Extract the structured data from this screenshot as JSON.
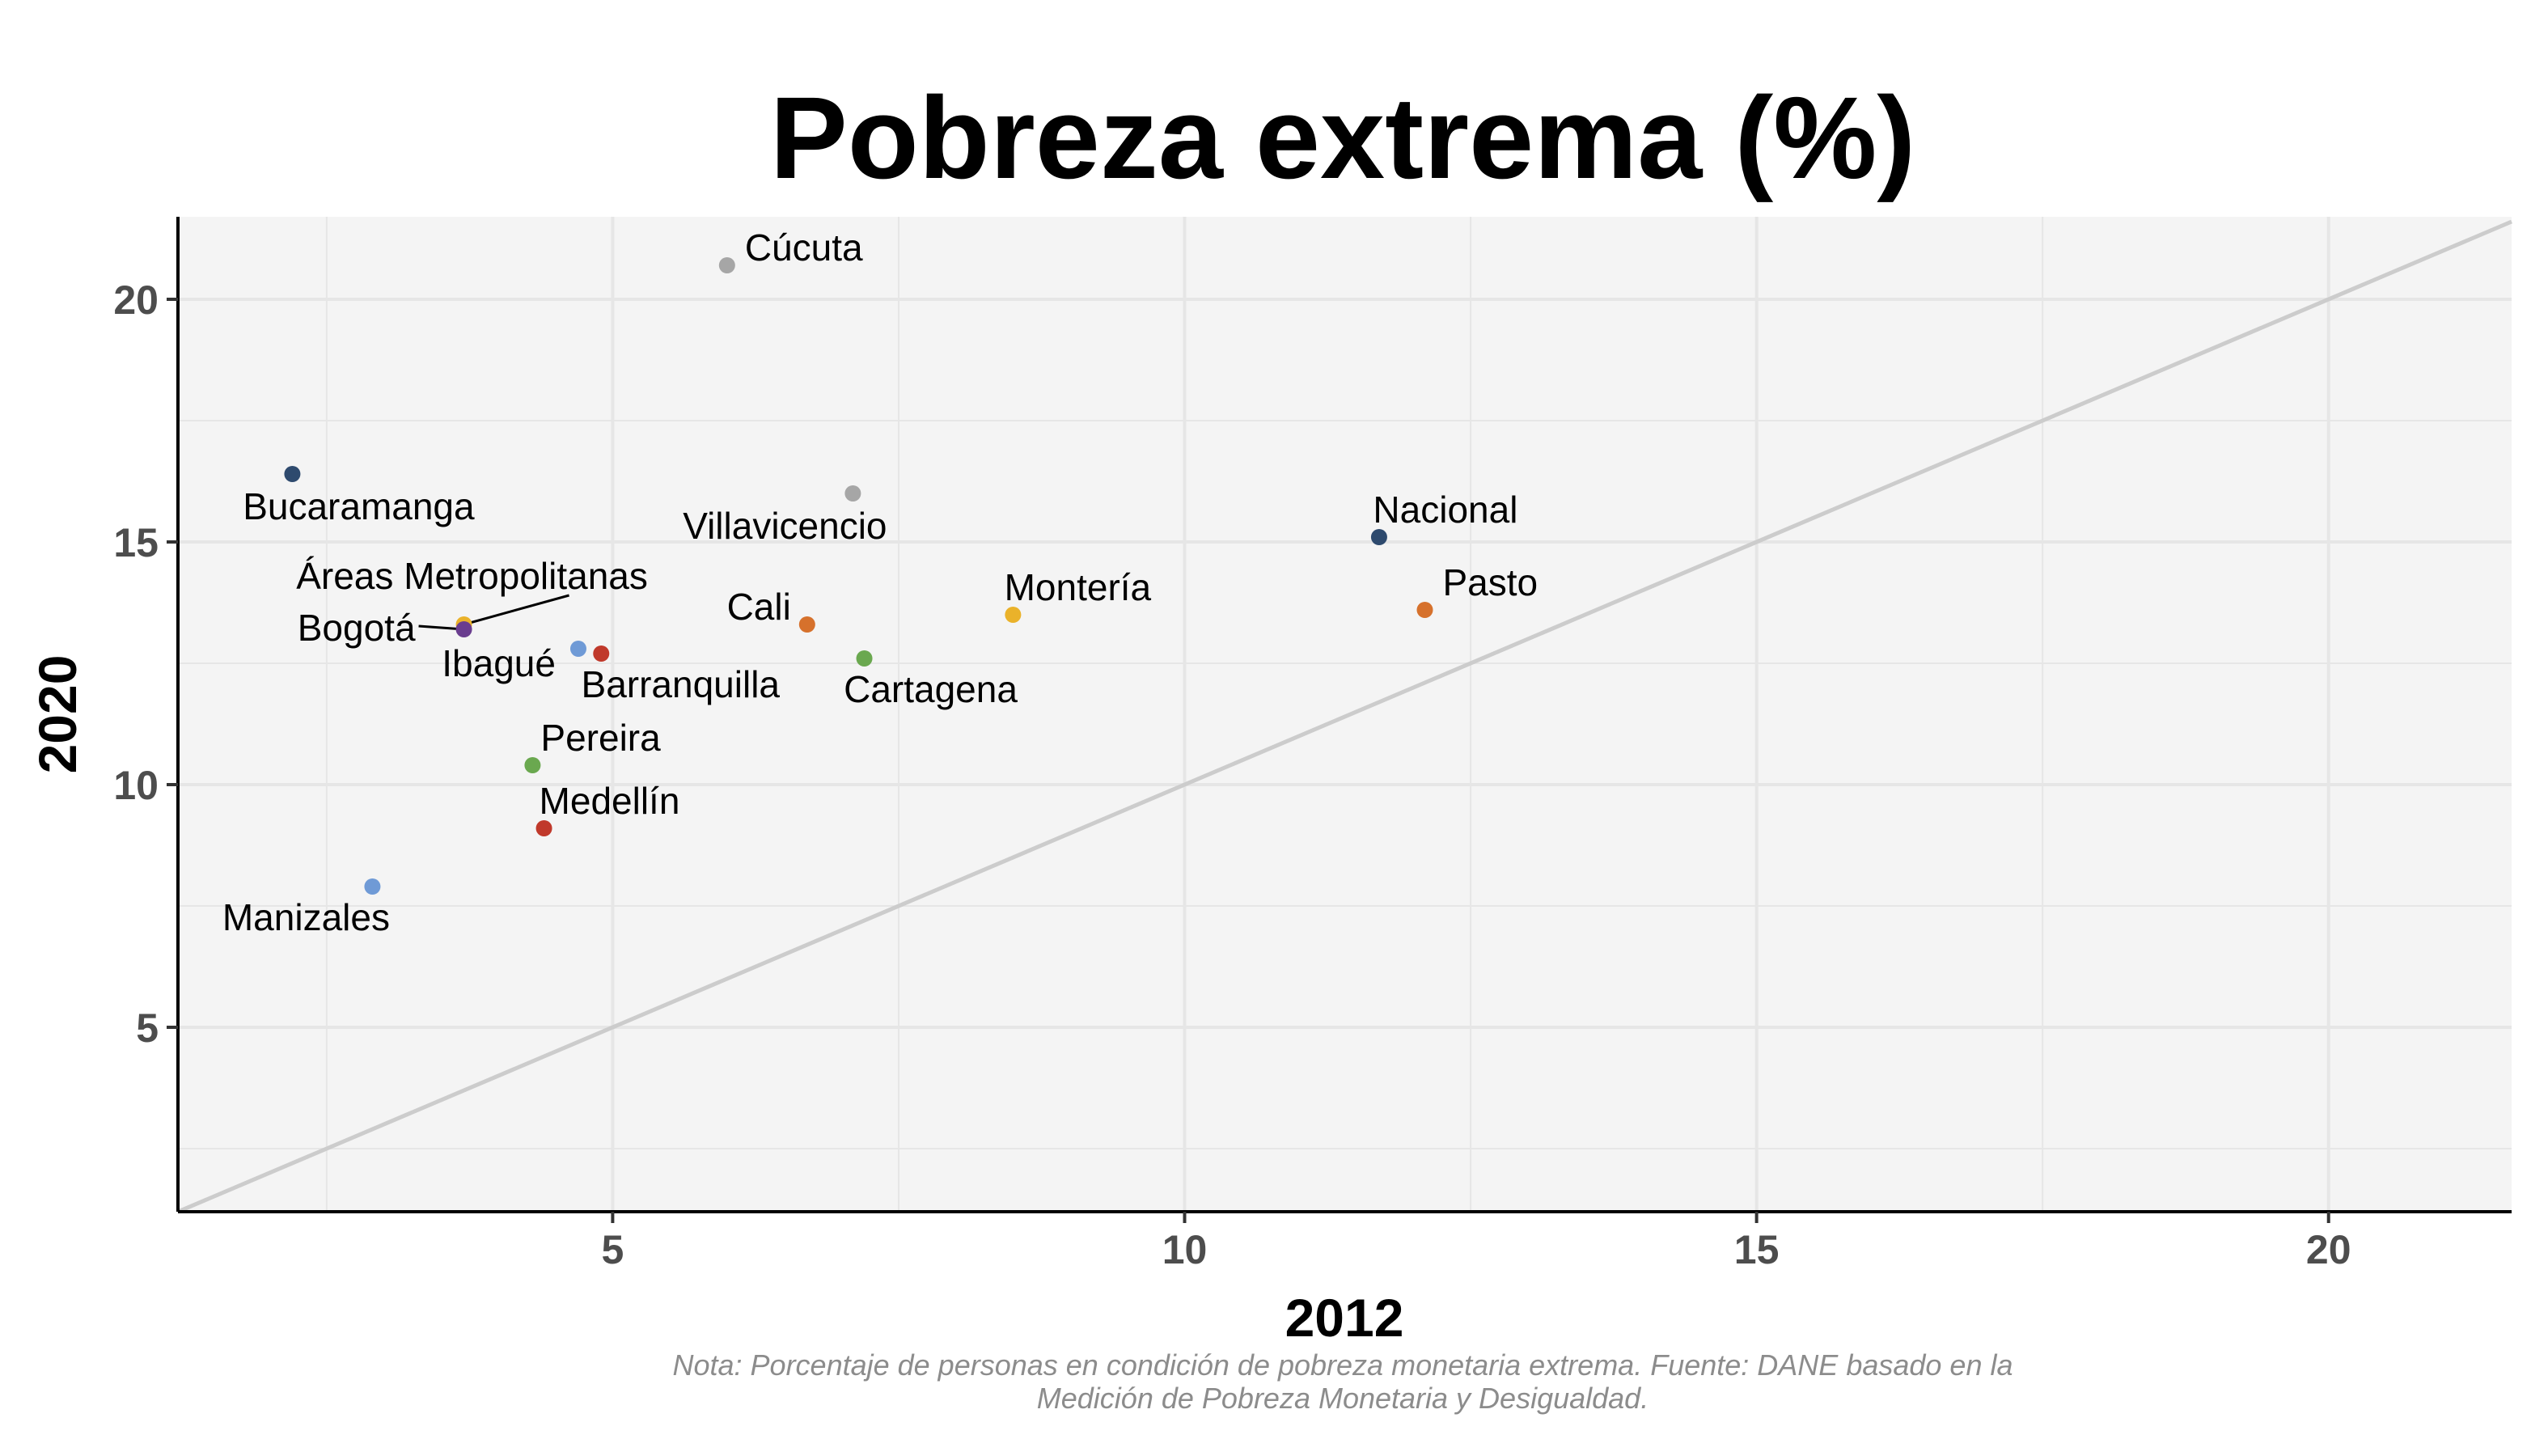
{
  "chart_data": {
    "type": "scatter",
    "title": "Pobreza extrema (%)",
    "xlabel": "2012",
    "ylabel": "2020",
    "xlim": [
      1.2,
      21.6
    ],
    "ylim": [
      1.2,
      21.7
    ],
    "xticks": [
      5,
      10,
      15,
      20
    ],
    "yticks": [
      5,
      10,
      15,
      20
    ],
    "reference_line": "y = x",
    "grid": true,
    "points": [
      {
        "label": "Cúcuta",
        "x": 6.0,
        "y": 20.7,
        "color": "#a6a6a6"
      },
      {
        "label": "Bucaramanga",
        "x": 2.2,
        "y": 16.4,
        "color": "#2e4a6e"
      },
      {
        "label": "Villavicencio",
        "x": 7.1,
        "y": 16.0,
        "color": "#a6a6a6"
      },
      {
        "label": "Nacional",
        "x": 11.7,
        "y": 15.1,
        "color": "#2e4a6e"
      },
      {
        "label": "Pasto",
        "x": 12.1,
        "y": 13.6,
        "color": "#d6712c"
      },
      {
        "label": "Montería",
        "x": 8.5,
        "y": 13.5,
        "color": "#eab22a"
      },
      {
        "label": "Cali",
        "x": 6.7,
        "y": 13.3,
        "color": "#d6712c"
      },
      {
        "label": "Áreas Metropolitanas",
        "x": 3.7,
        "y": 13.3,
        "color": "#eab22a"
      },
      {
        "label": "Bogotá",
        "x": 3.7,
        "y": 13.2,
        "color": "#6a3d8f"
      },
      {
        "label": "Ibagué",
        "x": 4.7,
        "y": 12.8,
        "color": "#6f9ad6"
      },
      {
        "label": "Barranquilla",
        "x": 4.9,
        "y": 12.7,
        "color": "#c0392b"
      },
      {
        "label": "Cartagena",
        "x": 7.2,
        "y": 12.6,
        "color": "#6aa84f"
      },
      {
        "label": "Pereira",
        "x": 4.3,
        "y": 10.4,
        "color": "#6aa84f"
      },
      {
        "label": "Medellín",
        "x": 4.4,
        "y": 9.1,
        "color": "#c0392b"
      },
      {
        "label": "Manizales",
        "x": 2.9,
        "y": 7.9,
        "color": "#6f9ad6"
      }
    ],
    "note_lines": [
      "Nota: Porcentaje de personas en condición de pobreza monetaria extrema. Fuente: DANE basado en la",
      "Medición de Pobreza Monetaria y Desigualdad."
    ],
    "colors": {
      "panel_bg": "#f4f4f4",
      "grid": "#e6e6e6",
      "reference_line": "#cccccc",
      "axis": "#000000"
    }
  }
}
